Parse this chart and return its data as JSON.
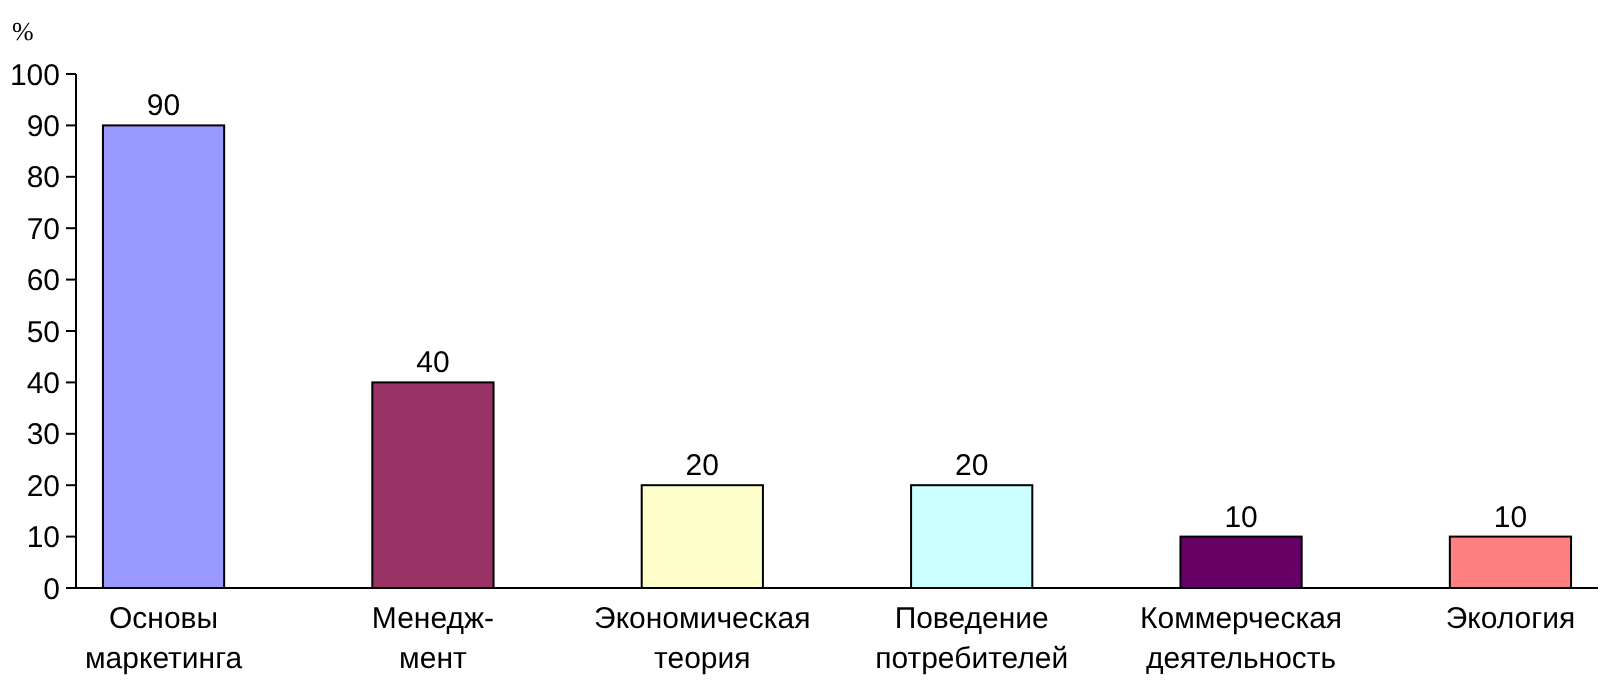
{
  "chart_data": {
    "type": "bar",
    "ylabel": "%",
    "categories": [
      "Основы\nмаркетинга",
      "Менедж-\nмент",
      "Экономическая\nтеория",
      "Поведение\nпотребителей",
      "Коммерческая\nдеятельность",
      "Экология"
    ],
    "values": [
      90,
      40,
      20,
      20,
      10,
      10
    ],
    "colors": [
      "#9999ff",
      "#993366",
      "#ffffcc",
      "#ccffff",
      "#660066",
      "#ff8080"
    ],
    "ylim": [
      0,
      100
    ],
    "yticks": [
      0,
      10,
      20,
      30,
      40,
      50,
      60,
      70,
      80,
      90,
      100
    ],
    "data_labels": true,
    "grid": false
  }
}
